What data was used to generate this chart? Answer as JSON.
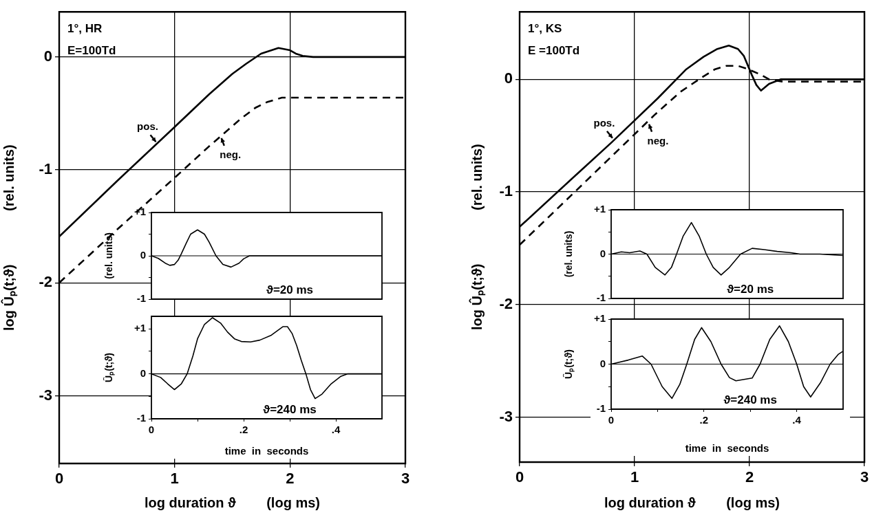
{
  "chart_data": [
    {
      "type": "line",
      "xlabel": "log duration ϑ        (log ms)",
      "ylabel": "log Ûₚ(t;ϑ)              (rel. units)",
      "annotations": [
        "1°, HR",
        "E=100Td",
        {
          "text": "pos.",
          "x": 0.85,
          "y": -0.77
        },
        {
          "text": "neg.",
          "x": 1.4,
          "y": -0.7
        }
      ],
      "xlim": [
        0,
        3
      ],
      "ylim": [
        -3.6,
        0.4
      ],
      "xticks": [
        0,
        1,
        2,
        3
      ],
      "yticks": [
        0,
        -1,
        -2,
        -3
      ],
      "grid": true,
      "series": [
        {
          "color": "#000000",
          "line_style": "solid",
          "x": [
            0,
            0.5,
            1,
            1.3,
            1.5,
            1.62,
            1.75,
            1.9,
            2.0,
            2.05,
            2.11,
            2.2,
            3
          ],
          "values": [
            -1.59,
            -1.1,
            -0.62,
            -0.33,
            -0.15,
            -0.06,
            0.03,
            0.08,
            0.06,
            0.03,
            0.01,
            0,
            0
          ]
        },
        {
          "color": "#000000",
          "line_style": "dashed",
          "x": [
            0,
            0.5,
            1,
            1.3,
            1.57,
            1.7,
            1.8,
            1.93,
            2.2,
            3
          ],
          "values": [
            -2.0,
            -1.53,
            -1.07,
            -0.79,
            -0.55,
            -0.45,
            -0.4,
            -0.36,
            -0.36,
            -0.36
          ]
        }
      ]
    },
    {
      "type": "line",
      "ylabel": "(rel. units)",
      "annotations": [
        "ϑ=20 ms"
      ],
      "xlim": [
        0,
        0.5
      ],
      "ylim": [
        -1,
        1
      ],
      "yticks": [
        {
          "value": 1,
          "label": "+1"
        },
        {
          "value": 0.5,
          "label": null
        },
        0,
        {
          "value": -0.5,
          "label": null
        },
        -1
      ],
      "tick_labels": "y",
      "ref_lines": [
        {
          "axis": "y",
          "value": 0
        }
      ],
      "series": [
        {
          "color": "#000000",
          "line_style": "solid",
          "x": [
            0,
            0.015,
            0.03,
            0.04,
            0.05,
            0.058,
            0.065,
            0.075,
            0.085,
            0.1,
            0.115,
            0.125,
            0.14,
            0.155,
            0.1725,
            0.19,
            0.2,
            0.2125,
            0.5
          ],
          "values": [
            0,
            -0.06,
            -0.17,
            -0.22,
            -0.2,
            -0.1,
            0.05,
            0.28,
            0.5,
            0.6,
            0.5,
            0.32,
            0,
            -0.2,
            -0.26,
            -0.17,
            -0.07,
            0,
            0
          ]
        }
      ]
    },
    {
      "type": "line",
      "xlabel": "time  in  seconds",
      "ylabel": "Ûₚ(t;ϑ)",
      "annotations": [
        "ϑ=240 ms"
      ],
      "xlim": [
        0,
        0.5
      ],
      "ylim": [
        -1,
        1.28
      ],
      "xticks": [
        0,
        {
          "value": 0.1,
          "label": null
        },
        {
          "value": 0.2,
          "label": ".2"
        },
        {
          "value": 0.3,
          "label": null
        },
        {
          "value": 0.4,
          "label": ".4"
        }
      ],
      "yticks": [
        {
          "value": 1,
          "label": "+1"
        },
        {
          "value": 0.5,
          "label": null
        },
        0,
        {
          "value": -0.5,
          "label": null
        },
        -1
      ],
      "ref_lines": [
        {
          "axis": "y",
          "value": 0
        }
      ],
      "series": [
        {
          "color": "#000000",
          "line_style": "solid",
          "x": [
            0,
            0.02,
            0.035,
            0.05,
            0.065,
            0.0775,
            0.09,
            0.1,
            0.115,
            0.1325,
            0.15,
            0.165,
            0.18,
            0.195,
            0.215,
            0.235,
            0.26,
            0.285,
            0.295,
            0.305,
            0.315,
            0.325,
            0.335,
            0.345,
            0.355,
            0.37,
            0.39,
            0.41,
            0.425,
            0.5
          ],
          "values": [
            0,
            -0.08,
            -0.22,
            -0.35,
            -0.22,
            0,
            0.4,
            0.78,
            1.1,
            1.25,
            1.13,
            0.93,
            0.78,
            0.72,
            0.71,
            0.75,
            0.86,
            1.05,
            1.05,
            0.9,
            0.63,
            0.3,
            0,
            -0.35,
            -0.55,
            -0.45,
            -0.22,
            -0.06,
            0,
            0
          ]
        }
      ]
    },
    {
      "type": "line",
      "xlabel": "log duration ϑ        (log ms)",
      "ylabel": "log Ûₚ(t;ϑ)              (rel. units)",
      "annotations": [
        "1°, KS",
        "E =100Td",
        {
          "text": "pos.",
          "x": 0.82,
          "y": -0.54
        },
        {
          "text": "neg.",
          "x": 1.12,
          "y": -0.38
        }
      ],
      "xlim": [
        0,
        3
      ],
      "ylim": [
        -3.4,
        0.6
      ],
      "xticks": [
        0,
        1,
        2,
        3
      ],
      "yticks": [
        0,
        -1,
        -2,
        -3
      ],
      "grid": true,
      "series": [
        {
          "color": "#000000",
          "line_style": "solid",
          "x": [
            0,
            0.5,
            0.8,
            1.2,
            1.45,
            1.6,
            1.72,
            1.82,
            1.9,
            1.95,
            2.02,
            2.06,
            2.1,
            2.17,
            2.27,
            3
          ],
          "values": [
            -1.31,
            -0.84,
            -0.56,
            -0.17,
            0.09,
            0.2,
            0.27,
            0.3,
            0.27,
            0.21,
            0.04,
            -0.05,
            -0.1,
            -0.04,
            0,
            0
          ]
        },
        {
          "color": "#000000",
          "line_style": "dashed",
          "x": [
            0,
            0.5,
            1.18,
            1.4,
            1.59,
            1.7,
            1.8,
            1.9,
            1.99,
            2.1,
            2.17,
            2.29,
            3
          ],
          "values": [
            -1.47,
            -0.98,
            -0.31,
            -0.11,
            0.02,
            0.09,
            0.12,
            0.12,
            0.09,
            0.04,
            0,
            -0.02,
            -0.02
          ]
        }
      ]
    },
    {
      "type": "line",
      "ylabel": "(rel. units)",
      "annotations": [
        "ϑ=20 ms"
      ],
      "xlim": [
        0,
        0.5
      ],
      "ylim": [
        -1,
        1
      ],
      "yticks": [
        {
          "value": 1,
          "label": "+1"
        },
        {
          "value": 0.5,
          "label": null
        },
        0,
        {
          "value": -0.5,
          "label": null
        },
        -1
      ],
      "tick_labels": "y",
      "ref_lines": [
        {
          "axis": "y",
          "value": 0
        }
      ],
      "series": [
        {
          "color": "#000000",
          "line_style": "solid",
          "x": [
            0,
            0.022,
            0.04,
            0.062,
            0.077,
            0.095,
            0.116,
            0.13,
            0.141,
            0.155,
            0.173,
            0.19,
            0.205,
            0.22,
            0.237,
            0.255,
            0.279,
            0.304,
            0.33,
            0.358,
            0.388,
            0.407,
            0.45,
            0.499
          ],
          "values": [
            0,
            0.05,
            0.03,
            0.07,
            0,
            -0.3,
            -0.47,
            -0.3,
            0,
            0.4,
            0.71,
            0.4,
            0,
            -0.3,
            -0.47,
            -0.3,
            0,
            0.13,
            0.1,
            0.06,
            0.03,
            0,
            0,
            -0.03
          ]
        }
      ]
    },
    {
      "type": "line",
      "xlabel": "time  in  seconds",
      "ylabel": "Ûₚ(t;ϑ)",
      "annotations": [
        "ϑ=240 ms"
      ],
      "xlim": [
        0,
        0.5
      ],
      "ylim": [
        -1,
        1
      ],
      "xticks": [
        0,
        {
          "value": 0.1,
          "label": null
        },
        {
          "value": 0.2,
          "label": ".2"
        },
        {
          "value": 0.3,
          "label": null
        },
        {
          "value": 0.4,
          "label": ".4"
        }
      ],
      "yticks": [
        {
          "value": 1,
          "label": "+1"
        },
        {
          "value": 0.5,
          "label": null
        },
        0,
        {
          "value": -0.5,
          "label": null
        },
        -1
      ],
      "ref_lines": [
        {
          "axis": "y",
          "value": 0
        }
      ],
      "series": [
        {
          "color": "#000000",
          "line_style": "solid",
          "x": [
            0,
            0.037,
            0.067,
            0.086,
            0.11,
            0.131,
            0.148,
            0.163,
            0.18,
            0.195,
            0.215,
            0.237,
            0.255,
            0.269,
            0.304,
            0.321,
            0.342,
            0.363,
            0.382,
            0.4,
            0.415,
            0.43,
            0.452,
            0.472,
            0.49,
            0.499
          ],
          "values": [
            0,
            0.09,
            0.18,
            0,
            -0.5,
            -0.76,
            -0.45,
            0,
            0.55,
            0.81,
            0.5,
            0,
            -0.3,
            -0.37,
            -0.31,
            0,
            0.55,
            0.85,
            0.5,
            0,
            -0.5,
            -0.73,
            -0.4,
            0,
            0.22,
            0.28
          ]
        }
      ]
    }
  ]
}
